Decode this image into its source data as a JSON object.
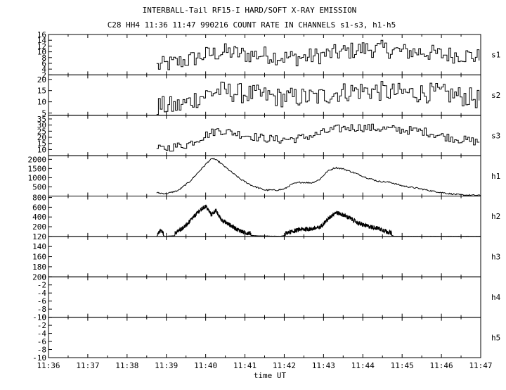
{
  "title": "INTERBALL-Tail RF15-I HARD/SOFT X-RAY EMISSION",
  "subtitle": "C28 HH4 11:36 11:47 990216  COUNT RATE IN CHANNELS s1-s3, h1-h5",
  "chart_data": {
    "type": "line",
    "xlabel": "time UT",
    "x_tick_labels": [
      "11:36",
      "11:37",
      "11:38",
      "11:39",
      "11:40",
      "11:41",
      "11:42",
      "11:43",
      "11:44",
      "11:45",
      "11:46",
      "11:47"
    ],
    "x_range_minutes": [
      0,
      11
    ],
    "data_start_minute": 2.75,
    "panels": [
      {
        "name": "s1",
        "ylim": [
          2,
          16
        ],
        "ticks": [
          "16",
          "14",
          "12",
          "10",
          "8",
          "6",
          "4",
          "2"
        ],
        "envelope": [
          [
            2.75,
            5
          ],
          [
            3.5,
            7
          ],
          [
            4.0,
            9
          ],
          [
            4.5,
            10
          ],
          [
            5.0,
            9
          ],
          [
            5.5,
            9
          ],
          [
            6.0,
            8
          ],
          [
            6.5,
            8
          ],
          [
            7.0,
            9
          ],
          [
            7.5,
            10
          ],
          [
            8.0,
            11
          ],
          [
            8.5,
            11
          ],
          [
            9.0,
            10
          ],
          [
            9.5,
            10
          ],
          [
            10.0,
            9
          ],
          [
            10.5,
            9
          ],
          [
            11.0,
            8
          ]
        ],
        "noise": 3.0
      },
      {
        "name": "s2",
        "ylim": [
          4,
          22
        ],
        "ticks": [
          "20",
          "15",
          "10",
          "5"
        ],
        "envelope": [
          [
            2.75,
            8
          ],
          [
            3.3,
            8
          ],
          [
            3.8,
            12
          ],
          [
            4.3,
            15
          ],
          [
            4.8,
            14
          ],
          [
            5.3,
            13
          ],
          [
            5.8,
            12
          ],
          [
            6.3,
            12
          ],
          [
            6.8,
            12
          ],
          [
            7.3,
            14
          ],
          [
            7.8,
            15
          ],
          [
            8.3,
            15
          ],
          [
            8.8,
            14
          ],
          [
            9.3,
            14
          ],
          [
            9.8,
            14
          ],
          [
            10.3,
            13
          ],
          [
            11.0,
            11
          ]
        ],
        "noise": 4.5
      },
      {
        "name": "s3",
        "ylim": [
          5,
          38
        ],
        "ticks": [
          "35",
          "30",
          "25",
          "20",
          "15",
          "10"
        ],
        "envelope": [
          [
            2.75,
            10
          ],
          [
            3.5,
            14
          ],
          [
            4.0,
            22
          ],
          [
            4.3,
            26
          ],
          [
            4.8,
            23
          ],
          [
            5.3,
            20
          ],
          [
            5.8,
            18
          ],
          [
            6.3,
            19
          ],
          [
            6.8,
            22
          ],
          [
            7.2,
            26
          ],
          [
            7.6,
            28
          ],
          [
            8.0,
            28
          ],
          [
            8.5,
            27
          ],
          [
            9.0,
            26
          ],
          [
            9.5,
            25
          ],
          [
            10.0,
            21
          ],
          [
            10.5,
            18
          ],
          [
            11.0,
            16
          ]
        ],
        "noise": 3.5
      },
      {
        "name": "h1",
        "ylim": [
          0,
          2200
        ],
        "ticks": [
          "2000",
          "1500",
          "1000",
          "500"
        ],
        "envelope": [
          [
            2.75,
            180
          ],
          [
            3.0,
            130
          ],
          [
            3.3,
            300
          ],
          [
            3.6,
            800
          ],
          [
            3.9,
            1500
          ],
          [
            4.1,
            1950
          ],
          [
            4.2,
            2050
          ],
          [
            4.35,
            1850
          ],
          [
            4.6,
            1400
          ],
          [
            4.9,
            900
          ],
          [
            5.2,
            550
          ],
          [
            5.5,
            330
          ],
          [
            5.8,
            320
          ],
          [
            6.0,
            380
          ],
          [
            6.2,
            650
          ],
          [
            6.4,
            750
          ],
          [
            6.7,
            720
          ],
          [
            6.9,
            900
          ],
          [
            7.1,
            1350
          ],
          [
            7.3,
            1550
          ],
          [
            7.5,
            1480
          ],
          [
            7.8,
            1250
          ],
          [
            8.1,
            1000
          ],
          [
            8.4,
            800
          ],
          [
            8.7,
            750
          ],
          [
            9.0,
            560
          ],
          [
            9.4,
            420
          ],
          [
            9.8,
            260
          ],
          [
            10.2,
            130
          ],
          [
            10.5,
            60
          ],
          [
            11.0,
            30
          ]
        ],
        "noise": 40
      },
      {
        "name": "h2",
        "ylim": [
          0,
          830
        ],
        "ticks": [
          "800",
          "600",
          "400",
          "200"
        ],
        "envelope": [
          [
            2.75,
            0
          ],
          [
            2.85,
            80
          ],
          [
            2.95,
            0
          ],
          [
            3.2,
            10
          ],
          [
            3.5,
            180
          ],
          [
            3.8,
            450
          ],
          [
            4.0,
            580
          ],
          [
            4.15,
            400
          ],
          [
            4.25,
            490
          ],
          [
            4.4,
            300
          ],
          [
            4.6,
            200
          ],
          [
            4.8,
            100
          ],
          [
            5.0,
            30
          ],
          [
            5.3,
            10
          ],
          [
            5.6,
            5
          ],
          [
            5.9,
            0
          ],
          [
            6.1,
            30
          ],
          [
            6.4,
            100
          ],
          [
            6.7,
            110
          ],
          [
            6.9,
            140
          ],
          [
            7.1,
            300
          ],
          [
            7.3,
            450
          ],
          [
            7.5,
            400
          ],
          [
            7.7,
            320
          ],
          [
            7.9,
            220
          ],
          [
            8.1,
            170
          ],
          [
            8.4,
            120
          ],
          [
            8.6,
            60
          ],
          [
            8.8,
            0
          ],
          [
            11.0,
            0
          ]
        ],
        "noise": 90
      },
      {
        "name": "h3",
        "ylim": [
          120,
          200
        ],
        "ticks": [
          "120",
          "140",
          "160",
          "180",
          "200"
        ],
        "inverted": true
      },
      {
        "name": "h4",
        "ylim": [
          -10,
          0
        ],
        "ticks": [
          "-10",
          "-8",
          "-6",
          "-4",
          "-2",
          "0"
        ]
      },
      {
        "name": "h5",
        "ylim": [
          -10,
          0
        ],
        "ticks": [
          "-10",
          "-8",
          "-6",
          "-4",
          "-2",
          "0"
        ]
      }
    ]
  }
}
